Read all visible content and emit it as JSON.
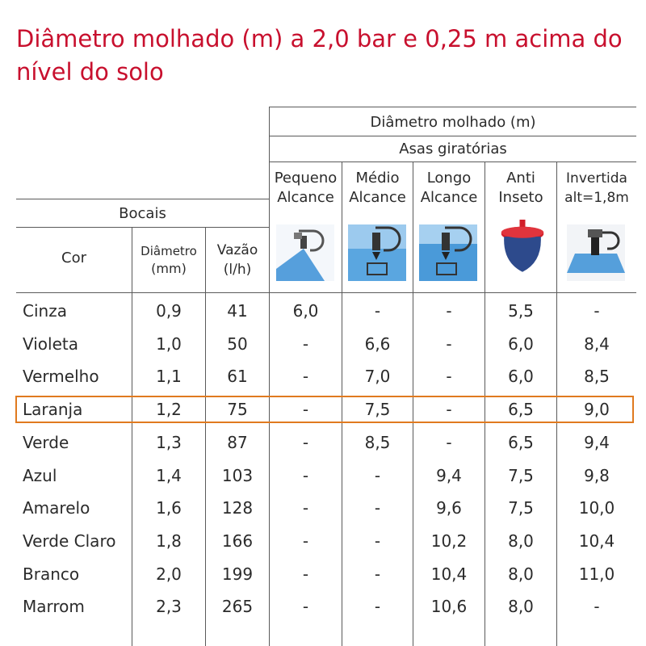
{
  "title": "Diâmetro molhado (m) a 2,0 bar e 0,25 m acima do nível do solo",
  "header": {
    "group_main": "Diâmetro molhado (m)",
    "group_sub": "Asas giratórias",
    "bocais": "Bocais",
    "col_cor": "Cor",
    "col_diametro_line1": "Diâmetro",
    "col_diametro_line2": "(mm)",
    "col_vazao_line1": "Vazão",
    "col_vazao_line2": "(l/h)",
    "col_pequeno_line1": "Pequeno",
    "col_pequeno_line2": "Alcance",
    "col_medio_line1": "Médio",
    "col_medio_line2": "Alcance",
    "col_longo_line1": "Longo",
    "col_longo_line2": "Alcance",
    "col_anti_line1": "Anti",
    "col_anti_line2": "Inseto",
    "col_invertida_line1": "Invertida",
    "col_invertida_line2": "alt=1,8m"
  },
  "icons": [
    "pequeno-alcance-icon",
    "medio-alcance-icon",
    "longo-alcance-icon",
    "anti-inseto-icon",
    "invertida-icon"
  ],
  "colors": {
    "title": "#c8102e",
    "highlight": "#e07a1f",
    "water": "#3a8fd6",
    "anti_red": "#d21f2a",
    "anti_blue": "#2d4a8c"
  },
  "highlighted_row": "Laranja",
  "rows": [
    {
      "cor": "Cinza",
      "diametro": "0,9",
      "vazao": "41",
      "pequeno": "6,0",
      "medio": "-",
      "longo": "-",
      "anti": "5,5",
      "invertida": "-"
    },
    {
      "cor": "Violeta",
      "diametro": "1,0",
      "vazao": "50",
      "pequeno": "-",
      "medio": "6,6",
      "longo": "-",
      "anti": "6,0",
      "invertida": "8,4"
    },
    {
      "cor": "Vermelho",
      "diametro": "1,1",
      "vazao": "61",
      "pequeno": "-",
      "medio": "7,0",
      "longo": "-",
      "anti": "6,0",
      "invertida": "8,5"
    },
    {
      "cor": "Laranja",
      "diametro": "1,2",
      "vazao": "75",
      "pequeno": "-",
      "medio": "7,5",
      "longo": "-",
      "anti": "6,5",
      "invertida": "9,0"
    },
    {
      "cor": "Verde",
      "diametro": "1,3",
      "vazao": "87",
      "pequeno": "-",
      "medio": "8,5",
      "longo": "-",
      "anti": "6,5",
      "invertida": "9,4"
    },
    {
      "cor": "Azul",
      "diametro": "1,4",
      "vazao": "103",
      "pequeno": "-",
      "medio": "-",
      "longo": "9,4",
      "anti": "7,5",
      "invertida": "9,8"
    },
    {
      "cor": "Amarelo",
      "diametro": "1,6",
      "vazao": "128",
      "pequeno": "-",
      "medio": "-",
      "longo": "9,6",
      "anti": "7,5",
      "invertida": "10,0"
    },
    {
      "cor": "Verde Claro",
      "diametro": "1,8",
      "vazao": "166",
      "pequeno": "-",
      "medio": "-",
      "longo": "10,2",
      "anti": "8,0",
      "invertida": "10,4"
    },
    {
      "cor": "Branco",
      "diametro": "2,0",
      "vazao": "199",
      "pequeno": "-",
      "medio": "-",
      "longo": "10,4",
      "anti": "8,0",
      "invertida": "11,0"
    },
    {
      "cor": "Marrom",
      "diametro": "2,3",
      "vazao": "265",
      "pequeno": "-",
      "medio": "-",
      "longo": "10,6",
      "anti": "8,0",
      "invertida": "-"
    }
  ]
}
